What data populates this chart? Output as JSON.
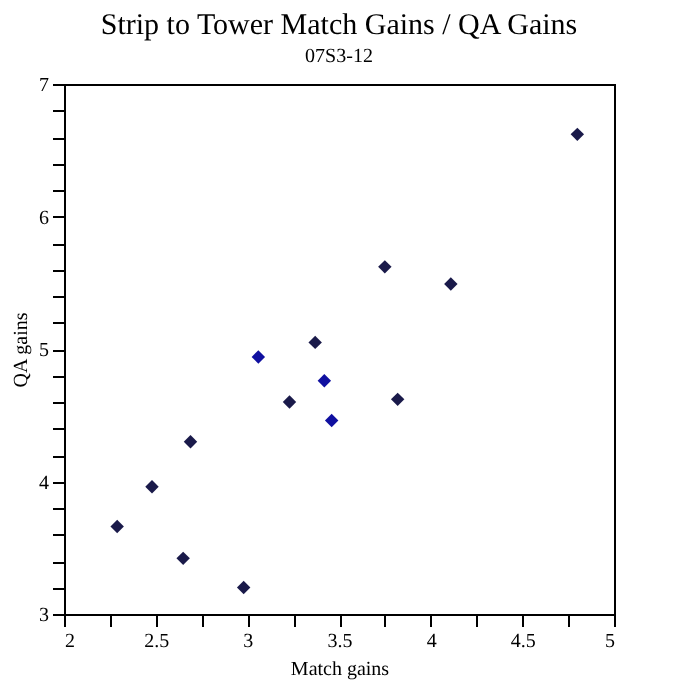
{
  "chart_data": {
    "type": "scatter",
    "title": "Strip to Tower Match Gains / QA Gains",
    "subtitle": "07S3-12",
    "xlabel": "Match gains",
    "ylabel": "QA gains",
    "x": [
      2.29,
      2.48,
      2.65,
      2.69,
      2.98,
      3.06,
      3.23,
      3.37,
      3.42,
      3.46,
      3.75,
      3.82,
      4.11,
      4.8
    ],
    "series": [
      {
        "colors": [
          "#1a1a4a",
          "#1a1a4a",
          "#1a1a4a",
          "#1a1a4a",
          "#1a1a4a",
          "#1010a0",
          "#1a1a4a",
          "#1a1a4a",
          "#1010a0",
          "#1010a0",
          "#1a1a4a",
          "#1a1a4a",
          "#1a1a4a",
          "#1a1a4a"
        ],
        "values": [
          3.66,
          3.96,
          3.42,
          4.3,
          3.2,
          4.94,
          4.6,
          5.05,
          4.76,
          4.46,
          5.62,
          4.62,
          5.49,
          6.62
        ]
      }
    ],
    "xlim": [
      2,
      5
    ],
    "ylim": [
      3,
      7
    ],
    "xticks": [
      2,
      {
        "value": 2.25,
        "label": null
      },
      2.5,
      {
        "value": 2.75,
        "label": null
      },
      3,
      {
        "value": 3.25,
        "label": null
      },
      3.5,
      {
        "value": 3.75,
        "label": null
      },
      4,
      {
        "value": 4.25,
        "label": null
      },
      4.5,
      {
        "value": 4.75,
        "label": null
      },
      5
    ],
    "yticks": [
      3,
      {
        "value": 3.2,
        "label": null
      },
      {
        "value": 3.4,
        "label": null
      },
      {
        "value": 3.6,
        "label": null
      },
      {
        "value": 3.8,
        "label": null
      },
      4,
      {
        "value": 4.2,
        "label": null
      },
      {
        "value": 4.4,
        "label": null
      },
      {
        "value": 4.6,
        "label": null
      },
      {
        "value": 4.8,
        "label": null
      },
      5,
      {
        "value": 5.2,
        "label": null
      },
      {
        "value": 5.4,
        "label": null
      },
      {
        "value": 5.6,
        "label": null
      },
      {
        "value": 5.8,
        "label": null
      },
      6,
      {
        "value": 6.2,
        "label": null
      },
      {
        "value": 6.4,
        "label": null
      },
      {
        "value": 6.6,
        "label": null
      },
      {
        "value": 6.8,
        "label": null
      },
      7
    ],
    "marker": "diamond",
    "grid": false
  }
}
